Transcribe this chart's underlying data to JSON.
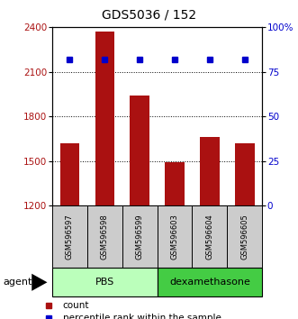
{
  "title": "GDS5036 / 152",
  "samples": [
    "GSM596597",
    "GSM596598",
    "GSM596599",
    "GSM596603",
    "GSM596604",
    "GSM596605"
  ],
  "bar_values": [
    1620,
    2370,
    1940,
    1490,
    1660,
    1620
  ],
  "percentile_values": [
    82,
    82,
    82,
    82,
    82,
    82
  ],
  "bar_color": "#aa1111",
  "percentile_color": "#0000cc",
  "ylim_left": [
    1200,
    2400
  ],
  "ylim_right": [
    0,
    100
  ],
  "yticks_left": [
    1200,
    1500,
    1800,
    2100,
    2400
  ],
  "yticks_right": [
    0,
    25,
    50,
    75,
    100
  ],
  "ytick_labels_right": [
    "0",
    "25",
    "50",
    "75",
    "100%"
  ],
  "groups": [
    {
      "label": "PBS",
      "indices": [
        0,
        1,
        2
      ],
      "color": "#bbffbb"
    },
    {
      "label": "dexamethasone",
      "indices": [
        3,
        4,
        5
      ],
      "color": "#44cc44"
    }
  ],
  "group_box_color": "#cccccc",
  "legend_count_label": "count",
  "legend_pct_label": "percentile rank within the sample",
  "agent_label": "agent",
  "title_fontsize": 10,
  "tick_fontsize": 7.5,
  "bar_width": 0.55
}
